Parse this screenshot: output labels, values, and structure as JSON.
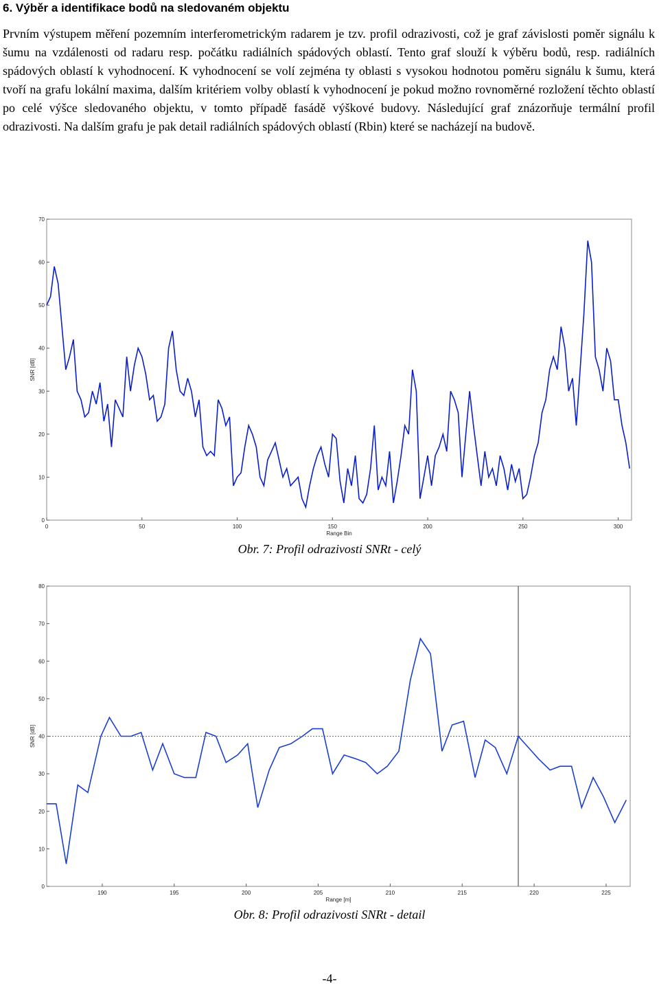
{
  "heading": "6. Výběr a identifikace bodů na sledovaném objektu",
  "paragraph": "Prvním výstupem měření pozemním interferometrickým radarem je tzv. profil odrazivosti, což je graf závislosti poměr signálu k šumu na vzdálenosti od radaru resp. počátku radiálních spádových oblastí. Tento graf slouží k výběru bodů, resp. radiálních spádových oblastí k vyhodnocení. K vyhodnocení se volí zejména ty oblasti s vysokou hodnotou poměru signálu k šumu, která tvoří na grafu lokální maxima, dalším kritériem volby oblastí k vyhodnocení je pokud možno rovnoměrné rozložení těchto oblastí po celé výšce sledovaného objektu, v tomto případě fasádě výškové budovy. Následující graf znázorňuje termální profil odrazivosti. Na dalším grafu je pak detail radiálních spádových oblastí (Rbin) které se nacházejí na budově.",
  "chart_data": [
    {
      "type": "line",
      "caption": "Obr. 7: Profil odrazivosti SNRt - celý",
      "x_label": "Range Bin",
      "y_label": "SNR [dB]",
      "color": "#0a1fc8",
      "xlim": [
        0,
        307
      ],
      "xticks": [
        0,
        50,
        100,
        150,
        200,
        250,
        300
      ],
      "ylim": [
        0,
        70
      ],
      "yticks": [
        0,
        10,
        20,
        30,
        40,
        50,
        60,
        70
      ],
      "x": [
        0,
        2,
        4,
        6,
        8,
        10,
        12,
        14,
        16,
        18,
        20,
        22,
        24,
        26,
        28,
        30,
        32,
        34,
        36,
        38,
        40,
        42,
        44,
        46,
        48,
        50,
        52,
        54,
        56,
        58,
        60,
        62,
        64,
        66,
        68,
        70,
        72,
        74,
        76,
        78,
        80,
        82,
        84,
        86,
        88,
        90,
        92,
        94,
        96,
        98,
        100,
        102,
        104,
        106,
        108,
        110,
        112,
        114,
        116,
        118,
        120,
        122,
        124,
        126,
        128,
        130,
        132,
        134,
        136,
        138,
        140,
        142,
        144,
        146,
        148,
        150,
        152,
        154,
        156,
        158,
        160,
        162,
        164,
        166,
        168,
        170,
        172,
        174,
        176,
        178,
        180,
        182,
        184,
        186,
        188,
        190,
        192,
        194,
        196,
        198,
        200,
        202,
        204,
        206,
        208,
        210,
        212,
        214,
        216,
        218,
        220,
        222,
        224,
        226,
        228,
        230,
        232,
        234,
        236,
        238,
        240,
        242,
        244,
        246,
        248,
        250,
        252,
        254,
        256,
        258,
        260,
        262,
        264,
        266,
        268,
        270,
        272,
        274,
        276,
        278,
        280,
        282,
        284,
        286,
        288,
        290,
        292,
        294,
        296,
        298,
        300,
        302,
        304,
        306
      ],
      "values": [
        50,
        52,
        59,
        55,
        45,
        35,
        38,
        42,
        30,
        28,
        24,
        25,
        30,
        27,
        32,
        23,
        27,
        17,
        28,
        26,
        24,
        38,
        30,
        36,
        40,
        38,
        34,
        28,
        29,
        23,
        24,
        27,
        40,
        44,
        35,
        30,
        29,
        33,
        30,
        24,
        28,
        17,
        15,
        16,
        15,
        28,
        26,
        22,
        24,
        8,
        10,
        11,
        17,
        22,
        20,
        17,
        10,
        8,
        14,
        16,
        18,
        14,
        10,
        12,
        8,
        9,
        10,
        5,
        3,
        8,
        12,
        15,
        17,
        13,
        10,
        20,
        19,
        9,
        4,
        12,
        8,
        15,
        5,
        4,
        6,
        12,
        22,
        7,
        10,
        8,
        16,
        4,
        9,
        15,
        22,
        20,
        35,
        30,
        5,
        10,
        15,
        8,
        15,
        17,
        20,
        16,
        30,
        28,
        25,
        10,
        20,
        30,
        22,
        15,
        8,
        16,
        10,
        12,
        8,
        15,
        12,
        7,
        13,
        9,
        12,
        5,
        6,
        10,
        15,
        18,
        25,
        28,
        35,
        38,
        35,
        45,
        40,
        30,
        33,
        22,
        35,
        48,
        65,
        60,
        38,
        35,
        30,
        40,
        37,
        28,
        28,
        22,
        18,
        12
      ]
    },
    {
      "type": "line",
      "caption": "Obr. 8: Profil odrazivosti SNRt - detail",
      "x_label": "Range [m]",
      "y_label": "SNR [dB]",
      "color": "#1a3fd0",
      "threshold": 40,
      "threshold_color": "#2a9a2a",
      "marker_x": [
        218.9
      ],
      "xlim": [
        186.14,
        226.67
      ],
      "xticks": [
        190,
        195,
        200,
        205,
        210,
        215,
        220,
        225
      ],
      "ylim": [
        0,
        80
      ],
      "yticks": [
        0,
        10,
        20,
        30,
        40,
        50,
        60,
        70,
        80
      ],
      "x": [
        186.14,
        186.8,
        187.5,
        188.3,
        189.0,
        189.9,
        190.5,
        191.3,
        192.0,
        192.7,
        193.5,
        194.2,
        195.0,
        195.7,
        196.5,
        197.2,
        197.9,
        198.6,
        199.4,
        200.1,
        200.8,
        201.6,
        202.3,
        203.1,
        203.9,
        204.6,
        205.3,
        206.0,
        206.8,
        207.6,
        208.3,
        209.1,
        209.8,
        210.6,
        211.4,
        212.1,
        212.8,
        213.6,
        214.3,
        215.1,
        215.9,
        216.6,
        217.3,
        218.1,
        218.9,
        219.6,
        220.3,
        221.1,
        221.8,
        222.6,
        223.3,
        224.1,
        224.8,
        225.6,
        226.4
      ],
      "values": [
        22,
        22,
        6,
        27,
        25,
        40,
        45,
        40,
        40,
        41,
        31,
        38,
        30,
        29,
        29,
        41,
        40,
        33,
        35,
        38,
        21,
        31,
        37,
        38,
        40,
        42,
        42,
        30,
        35,
        34,
        33,
        30,
        32,
        36,
        55,
        66,
        62,
        36,
        43,
        44,
        29,
        39,
        37,
        30,
        40,
        37,
        34,
        31,
        32,
        32,
        21,
        29,
        24,
        17,
        23
      ]
    }
  ],
  "page_number": "-4-"
}
